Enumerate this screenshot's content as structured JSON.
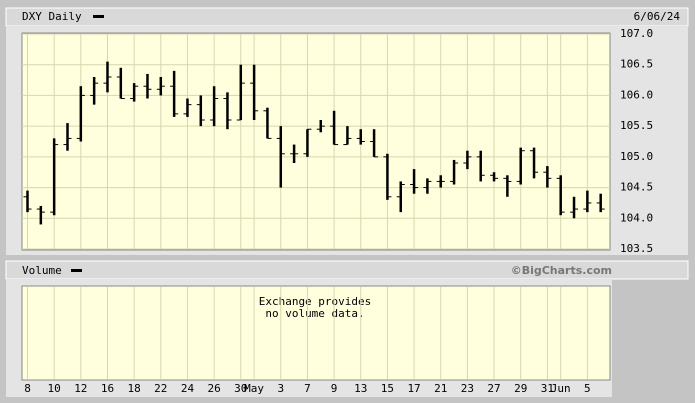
{
  "chart_data": [
    {
      "type": "ohlc",
      "title": "DXY Daily",
      "date": "6/06/24",
      "categories": [
        "8",
        null,
        "10",
        null,
        "12",
        null,
        "16",
        null,
        "18",
        null,
        "22",
        null,
        "24",
        null,
        "26",
        null,
        "30",
        "May",
        null,
        "3",
        null,
        "7",
        null,
        "9",
        null,
        "13",
        null,
        "15",
        null,
        "17",
        null,
        "21",
        null,
        "23",
        null,
        "27",
        null,
        "29",
        null,
        "31",
        "Jun",
        null,
        "5",
        null
      ],
      "open": [
        104.35,
        104.15,
        104.1,
        105.2,
        105.3,
        106.0,
        106.2,
        106.3,
        105.95,
        106.15,
        106.1,
        106.15,
        105.7,
        105.85,
        105.6,
        105.95,
        105.6,
        106.2,
        105.75,
        105.3,
        105.05,
        105.05,
        105.45,
        105.5,
        105.2,
        105.3,
        105.25,
        105.0,
        104.35,
        104.55,
        104.5,
        104.6,
        104.6,
        104.9,
        105.0,
        104.7,
        104.65,
        104.6,
        105.1,
        104.75,
        104.65,
        104.1,
        104.15,
        104.25
      ],
      "high": [
        104.45,
        104.2,
        105.3,
        105.55,
        106.15,
        106.3,
        106.55,
        106.45,
        106.2,
        106.35,
        106.3,
        106.4,
        105.95,
        106.0,
        106.15,
        106.05,
        106.5,
        106.5,
        105.8,
        105.5,
        105.2,
        105.45,
        105.6,
        105.75,
        105.5,
        105.45,
        105.45,
        105.05,
        104.6,
        104.8,
        104.65,
        104.7,
        104.95,
        105.1,
        105.1,
        104.75,
        104.7,
        105.15,
        105.15,
        104.85,
        104.7,
        104.35,
        104.45,
        104.4
      ],
      "low": [
        104.1,
        103.9,
        104.05,
        105.1,
        105.25,
        105.85,
        106.05,
        105.95,
        105.9,
        105.95,
        106.0,
        105.65,
        105.65,
        105.5,
        105.5,
        105.45,
        105.6,
        105.6,
        105.3,
        104.5,
        104.9,
        105.0,
        105.4,
        105.2,
        105.2,
        105.2,
        105.0,
        104.3,
        104.1,
        104.4,
        104.4,
        104.5,
        104.55,
        104.8,
        104.6,
        104.6,
        104.35,
        104.55,
        104.65,
        104.5,
        104.05,
        104.0,
        104.1,
        104.1
      ],
      "close": [
        104.15,
        104.1,
        105.2,
        105.3,
        106.0,
        106.2,
        106.3,
        105.95,
        106.15,
        106.1,
        106.15,
        105.7,
        105.85,
        105.6,
        105.95,
        105.6,
        106.2,
        105.75,
        105.3,
        105.05,
        105.05,
        105.45,
        105.5,
        105.2,
        105.3,
        105.25,
        105.0,
        104.35,
        104.55,
        104.5,
        104.6,
        104.6,
        104.9,
        105.0,
        104.7,
        104.65,
        104.6,
        105.1,
        104.75,
        104.65,
        104.1,
        104.15,
        104.25,
        104.15
      ],
      "color": "#000000",
      "ylim": [
        103.5,
        107.0
      ],
      "yticks": [
        {
          "value": 103.5,
          "label": "103.5"
        },
        {
          "value": 104,
          "label": "104.0"
        },
        104.5,
        {
          "value": 105,
          "label": "105.0"
        },
        105.5,
        {
          "value": 106,
          "label": "106.0"
        },
        106.5,
        {
          "value": 107,
          "label": "107.0"
        }
      ],
      "grid": true
    },
    {
      "type": "bar",
      "title": "Volume",
      "annotation": [
        "Exchange provides",
        "no volume data."
      ],
      "source": "©BigCharts.com",
      "grid": true
    }
  ]
}
